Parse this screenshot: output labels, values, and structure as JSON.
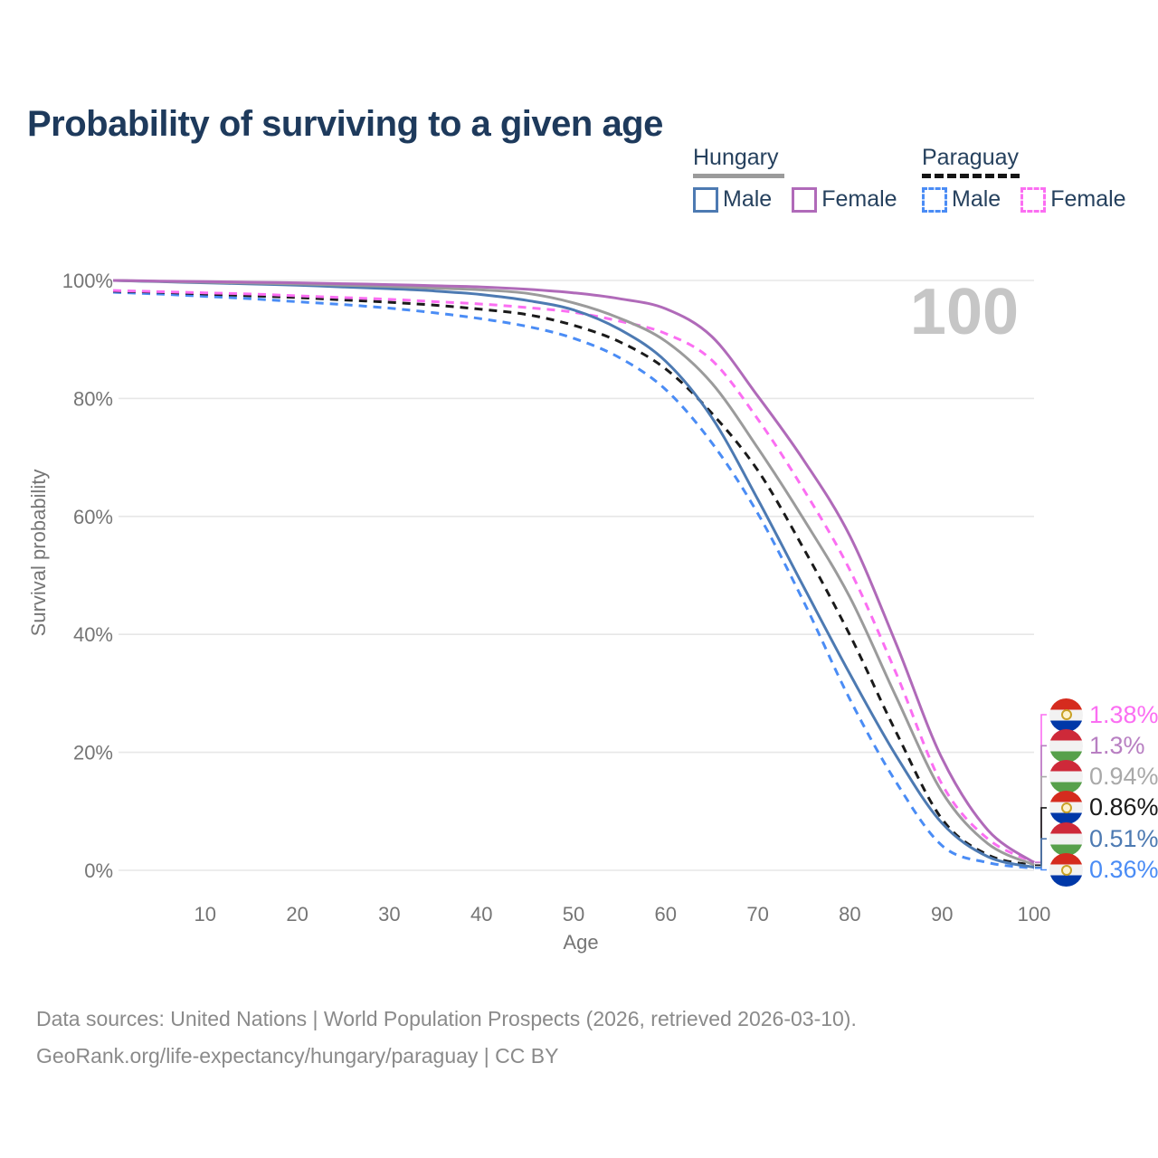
{
  "title": "Probability of surviving to a given age",
  "watermark": "100",
  "legend": {
    "groups": [
      {
        "name": "Hungary",
        "line_style": "solid",
        "items": [
          {
            "label": "Male",
            "color": "#4d7ab2"
          },
          {
            "label": "Female",
            "color": "#b06ab9"
          }
        ]
      },
      {
        "name": "Paraguay",
        "line_style": "dashed",
        "items": [
          {
            "label": "Male",
            "color": "#4a8cf5"
          },
          {
            "label": "Female",
            "color": "#fb6ef2"
          }
        ]
      }
    ]
  },
  "axes": {
    "x_label": "Age",
    "y_label": "Survival probability"
  },
  "chart_data": {
    "type": "line",
    "title": "Probability of surviving to a given age",
    "xlabel": "Age",
    "ylabel": "Survival probability",
    "xlim": [
      0,
      100
    ],
    "ylim": [
      0,
      100
    ],
    "grid": "horizontal",
    "legend_position": "top-right",
    "x_ticks": [
      {
        "v": 10,
        "label": "10"
      },
      {
        "v": 20,
        "label": "20"
      },
      {
        "v": 30,
        "label": "30"
      },
      {
        "v": 40,
        "label": "40"
      },
      {
        "v": 50,
        "label": "50"
      },
      {
        "v": 60,
        "label": "60"
      },
      {
        "v": 70,
        "label": "70"
      },
      {
        "v": 80,
        "label": "80"
      },
      {
        "v": 90,
        "label": "90"
      },
      {
        "v": 100,
        "label": "100"
      }
    ],
    "y_ticks": [
      {
        "v": 0,
        "label": "0%"
      },
      {
        "v": 20,
        "label": "20%"
      },
      {
        "v": 40,
        "label": "40%"
      },
      {
        "v": 60,
        "label": "60%"
      },
      {
        "v": 80,
        "label": "80%"
      },
      {
        "v": 100,
        "label": "100%"
      }
    ],
    "x": [
      0,
      5,
      10,
      15,
      20,
      25,
      30,
      35,
      40,
      45,
      50,
      55,
      60,
      65,
      70,
      75,
      80,
      85,
      90,
      95,
      100
    ],
    "series": [
      {
        "name": "Paraguay Male",
        "country": "Paraguay",
        "sex": "Male",
        "style": "dashed",
        "color": "#4a8cf5",
        "values": [
          98.0,
          97.7,
          97.3,
          96.9,
          96.4,
          95.9,
          95.3,
          94.5,
          93.5,
          92.2,
          90.2,
          86.9,
          81.5,
          72.5,
          60.5,
          45.5,
          29.0,
          15.0,
          4.2,
          1.3,
          0.36
        ]
      },
      {
        "name": "Paraguay Average",
        "country": "Paraguay",
        "sex": "Both",
        "style": "dashed",
        "color": "#1a1a1a",
        "values": [
          98.2,
          98.0,
          97.7,
          97.4,
          97.1,
          96.7,
          96.3,
          95.8,
          95.1,
          94.2,
          92.4,
          89.6,
          85.0,
          77.5,
          67.8,
          54.5,
          39.9,
          23.5,
          8.7,
          2.6,
          0.86
        ]
      },
      {
        "name": "Paraguay Female",
        "country": "Paraguay",
        "sex": "Female",
        "style": "dashed",
        "color": "#fb6ef2",
        "values": [
          98.3,
          98.1,
          97.9,
          97.7,
          97.4,
          97.1,
          96.8,
          96.4,
          96.0,
          95.4,
          94.6,
          93.1,
          91.0,
          86.5,
          76.5,
          64.5,
          50.9,
          33.5,
          14.6,
          5.3,
          1.38
        ]
      },
      {
        "name": "Hungary Male",
        "country": "Hungary",
        "sex": "Male",
        "style": "solid",
        "color": "#4d7ab2",
        "values": [
          100,
          99.8,
          99.6,
          99.4,
          99.2,
          98.9,
          98.6,
          98.2,
          97.6,
          96.6,
          95.0,
          91.7,
          86.3,
          76.8,
          62.9,
          48.0,
          33.3,
          19.5,
          8.0,
          2.3,
          0.51
        ]
      },
      {
        "name": "Hungary Average",
        "country": "Hungary",
        "sex": "Both",
        "style": "solid",
        "color": "#9b9b9b",
        "values": [
          100,
          99.85,
          99.7,
          99.55,
          99.4,
          99.2,
          99.0,
          98.7,
          98.4,
          97.8,
          96.2,
          93.6,
          89.7,
          82.6,
          71.6,
          59.5,
          46.3,
          29.5,
          13.3,
          4.5,
          0.94
        ]
      },
      {
        "name": "Hungary Female",
        "country": "Hungary",
        "sex": "Female",
        "style": "solid",
        "color": "#b06ab9",
        "values": [
          100,
          99.9,
          99.8,
          99.7,
          99.6,
          99.45,
          99.3,
          99.1,
          98.9,
          98.5,
          97.9,
          96.9,
          95.2,
          90.5,
          80.4,
          69.5,
          56.7,
          38.5,
          19.0,
          6.8,
          1.3
        ]
      }
    ]
  },
  "end_labels": [
    {
      "text": "1.38%",
      "value": 1.38,
      "flag": "py",
      "series": "Paraguay Female",
      "color": "#fb6ef2"
    },
    {
      "text": "1.3%",
      "value": 1.3,
      "flag": "hu",
      "series": "Hungary Female",
      "color": "#b87fc2"
    },
    {
      "text": "0.94%",
      "value": 0.94,
      "flag": "hu",
      "series": "Hungary Average",
      "color": "#a9a9a9"
    },
    {
      "text": "0.86%",
      "value": 0.86,
      "flag": "py",
      "series": "Paraguay Average",
      "color": "#1a1a1a"
    },
    {
      "text": "0.51%",
      "value": 0.51,
      "flag": "hu",
      "series": "Hungary Male",
      "color": "#4d7ab2"
    },
    {
      "text": "0.36%",
      "value": 0.36,
      "flag": "py",
      "series": "Paraguay Male",
      "color": "#4a8cf5"
    }
  ],
  "footer": {
    "line1": "Data sources: United Nations | World Population Prospects (2026, retrieved 2026-03-10).",
    "line2": "GeoRank.org/life-expectancy/hungary/paraguay | CC BY"
  },
  "colors": {
    "title": "#1e3a5c",
    "legend_text": "#26415e",
    "axis_text": "#757575",
    "gridline": "#e7e7e7",
    "watermark": "#c6c6c6",
    "footer_text": "#8a8a8a"
  }
}
